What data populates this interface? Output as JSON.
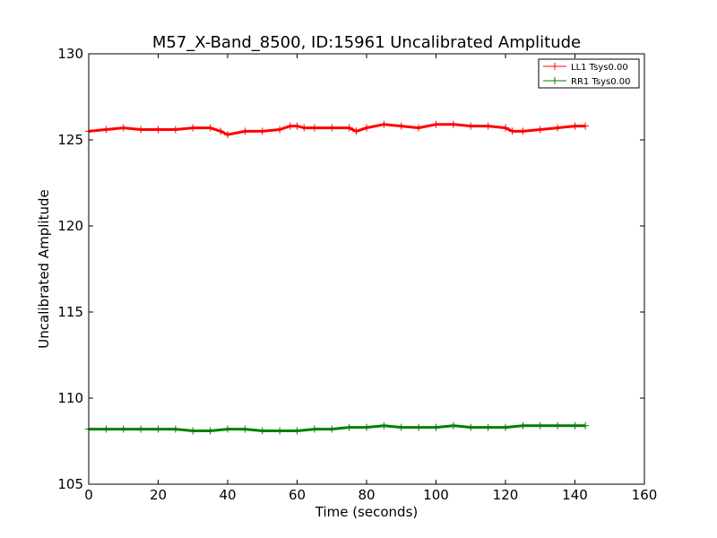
{
  "chart_data": {
    "type": "line",
    "title": "M57_X-Band_8500, ID:15961 Uncalibrated Amplitude",
    "xlabel": "Time (seconds)",
    "ylabel": "Uncalibrated Amplitude",
    "xlim": [
      0,
      160
    ],
    "ylim": [
      105,
      130
    ],
    "xticks": [
      0,
      20,
      40,
      60,
      80,
      100,
      120,
      140,
      160
    ],
    "yticks": [
      105,
      110,
      115,
      120,
      125,
      130
    ],
    "grid": false,
    "legend_position": "top-right",
    "series": [
      {
        "name": "LL1 Tsys0.00",
        "color": "#ff0000",
        "marker": "plus",
        "x": [
          0,
          5,
          10,
          15,
          20,
          25,
          30,
          35,
          38,
          40,
          45,
          50,
          55,
          58,
          60,
          62,
          65,
          70,
          75,
          77,
          80,
          85,
          90,
          95,
          100,
          105,
          110,
          115,
          120,
          122,
          125,
          130,
          135,
          140,
          143
        ],
        "y": [
          125.5,
          125.6,
          125.7,
          125.6,
          125.6,
          125.6,
          125.7,
          125.7,
          125.5,
          125.3,
          125.5,
          125.5,
          125.6,
          125.8,
          125.8,
          125.7,
          125.7,
          125.7,
          125.7,
          125.5,
          125.7,
          125.9,
          125.8,
          125.7,
          125.9,
          125.9,
          125.8,
          125.8,
          125.7,
          125.5,
          125.5,
          125.6,
          125.7,
          125.8,
          125.8
        ]
      },
      {
        "name": "RR1 Tsys0.00",
        "color": "#008000",
        "marker": "plus",
        "x": [
          0,
          5,
          10,
          15,
          20,
          25,
          30,
          35,
          40,
          45,
          50,
          55,
          60,
          65,
          70,
          75,
          80,
          85,
          90,
          95,
          100,
          105,
          110,
          115,
          120,
          125,
          130,
          135,
          140,
          143
        ],
        "y": [
          108.2,
          108.2,
          108.2,
          108.2,
          108.2,
          108.2,
          108.1,
          108.1,
          108.2,
          108.2,
          108.1,
          108.1,
          108.1,
          108.2,
          108.2,
          108.3,
          108.3,
          108.4,
          108.3,
          108.3,
          108.3,
          108.4,
          108.3,
          108.3,
          108.3,
          108.4,
          108.4,
          108.4,
          108.4,
          108.4
        ]
      }
    ]
  }
}
